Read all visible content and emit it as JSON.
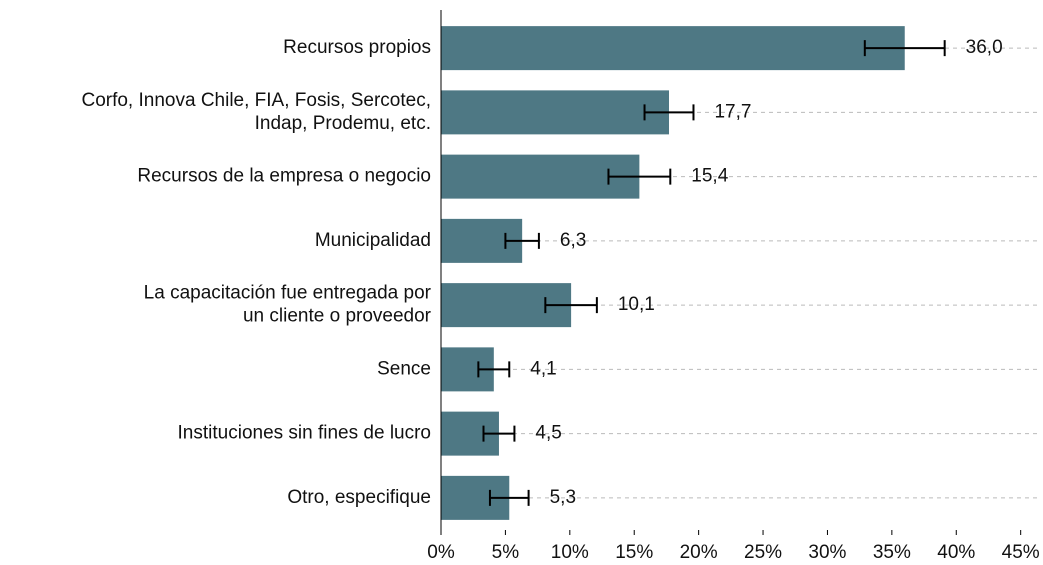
{
  "chart_data": {
    "type": "bar",
    "orientation": "horizontal",
    "categories": [
      [
        "Recursos propios"
      ],
      [
        "Corfo, Innova Chile, FIA, Fosis, Sercotec,",
        "Indap, Prodemu, etc."
      ],
      [
        "Recursos de la empresa o negocio"
      ],
      [
        "Municipalidad"
      ],
      [
        "La capacitación fue entregada por",
        "un cliente o proveedor"
      ],
      [
        "Sence"
      ],
      [
        "Instituciones sin fines de lucro"
      ],
      [
        "Otro, especifique"
      ]
    ],
    "values": [
      36.0,
      17.7,
      15.4,
      6.3,
      10.1,
      4.1,
      4.5,
      5.3
    ],
    "value_labels": [
      "36,0",
      "17,7",
      "15,4",
      "6,3",
      "10,1",
      "4,1",
      "4,5",
      "5,3"
    ],
    "errors": [
      3.1,
      1.9,
      2.4,
      1.3,
      2.0,
      1.2,
      1.2,
      1.5
    ],
    "color": "#4e7884",
    "xlim": [
      0,
      46.5
    ],
    "xticks": [
      {
        "value": 0,
        "label": "0%"
      },
      {
        "value": 5,
        "label": "5%"
      },
      {
        "value": 10,
        "label": "10%"
      },
      {
        "value": 15,
        "label": "15%"
      },
      {
        "value": 20,
        "label": "20%"
      },
      {
        "value": 25,
        "label": "25%"
      },
      {
        "value": 30,
        "label": "30%"
      },
      {
        "value": 35,
        "label": "35%"
      },
      {
        "value": 40,
        "label": "40%"
      },
      {
        "value": 45,
        "label": "45%"
      }
    ],
    "grid": true
  }
}
